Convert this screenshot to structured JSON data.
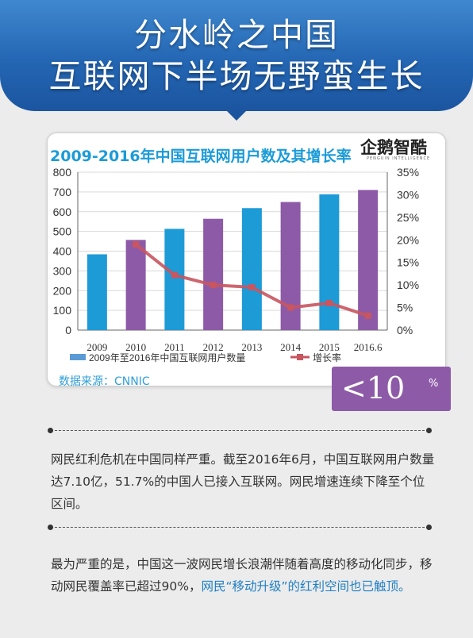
{
  "header": {
    "title_line1": "分水岭之中国",
    "title_line2": "互联网下半场无野蛮生长"
  },
  "chart_data": {
    "type": "bar",
    "title": "2009-2016年中国互联网用户数及其增长率",
    "categories": [
      "2009",
      "2010",
      "2011",
      "2012",
      "2013",
      "2014",
      "2015",
      "2016.6"
    ],
    "series": [
      {
        "name": "2009年至2016年中国互联网用户数量",
        "type": "bar",
        "values": [
          384,
          457,
          513,
          564,
          618,
          649,
          688,
          710
        ],
        "bar_colors": [
          "#1d9bd7",
          "#8d5aa8",
          "#1d9bd7",
          "#8d5aa8",
          "#1d9bd7",
          "#8d5aa8",
          "#1d9bd7",
          "#8d5aa8"
        ]
      },
      {
        "name": "增长率",
        "type": "line",
        "axis": "right",
        "values": [
          null,
          19,
          12.2,
          10,
          9.5,
          5,
          6,
          3.2
        ],
        "color": "#c8555f"
      }
    ],
    "left_axis": {
      "min": 0,
      "max": 800,
      "ticks": [
        "0",
        "100",
        "200",
        "300",
        "400",
        "500",
        "600",
        "700",
        "800"
      ]
    },
    "right_axis": {
      "min": 0,
      "max": 35,
      "ticks": [
        "0%",
        "5%",
        "10%",
        "15%",
        "20%",
        "25%",
        "30%",
        "35%"
      ]
    },
    "grid": true,
    "legend_position": "bottom"
  },
  "logo": {
    "name": "企鹅智酷",
    "subtitle": "PENGUIN INTELLIGENCE"
  },
  "source": "数据来源：CNNIC",
  "badge": {
    "value": "<10",
    "unit": "%",
    "color": "#8d5aa8"
  },
  "paragraph1": "网民红利危机在中国同样严重。截至2016年6月，中国互联网用户数量达7.10亿，51.7%的中国人已接入互联网。网民增速连续下降至个位区间。",
  "paragraph2": {
    "text": "最为严重的是，中国这一波网民增长浪潮伴随着高度的移动化同步，移动网民覆盖率已超过90%，",
    "highlight": "网民“移动升级”的红利空间也已触顶。"
  },
  "colors": {
    "banner": "#2466b3",
    "bar_blue": "#1d9bd7",
    "bar_purple": "#8d5aa8",
    "line": "#c8555f",
    "accent_text": "#1f7fc4"
  }
}
